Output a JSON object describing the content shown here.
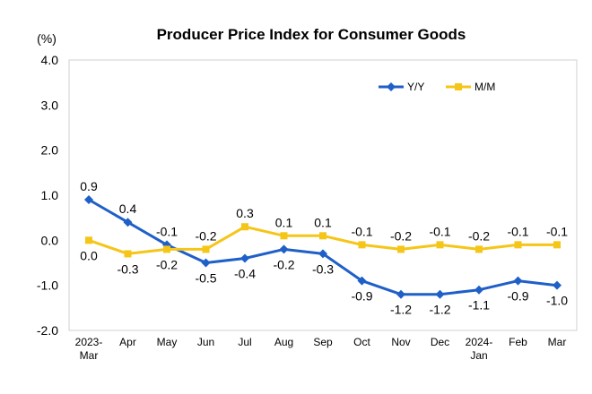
{
  "chart_data": {
    "type": "line",
    "title": "Producer Price Index for Consumer Goods",
    "unit_label": "(%)",
    "ylim": [
      -2.0,
      4.0
    ],
    "yticks": [
      "4.0",
      "3.0",
      "2.0",
      "1.0",
      "0.0",
      "-1.0",
      "-2.0"
    ],
    "ytick_values": [
      4,
      3,
      2,
      1,
      0,
      -1,
      -2
    ],
    "categories": [
      [
        "2023-",
        "Mar"
      ],
      [
        "Apr"
      ],
      [
        "May"
      ],
      [
        "Jun"
      ],
      [
        "Jul"
      ],
      [
        "Aug"
      ],
      [
        "Sep"
      ],
      [
        "Oct"
      ],
      [
        "Nov"
      ],
      [
        "Dec"
      ],
      [
        "2024-",
        "Jan"
      ],
      [
        "Feb"
      ],
      [
        "Mar"
      ]
    ],
    "grid": false,
    "legend_position": "top-right",
    "series": [
      {
        "name": "Y/Y",
        "color": "#1F5FC8",
        "marker": "diamond",
        "values": [
          0.9,
          0.4,
          -0.1,
          -0.5,
          -0.4,
          -0.2,
          -0.3,
          -0.9,
          -1.2,
          -1.2,
          -1.1,
          -0.9,
          -1.0
        ],
        "labels": [
          "0.9",
          "0.4",
          "-0.1",
          "-0.5",
          "-0.4",
          "-0.2",
          "-0.3",
          "-0.9",
          "-1.2",
          "-1.2",
          "-1.1",
          "-0.9",
          "-1.0"
        ]
      },
      {
        "name": "M/M",
        "color": "#F5C518",
        "marker": "square",
        "values": [
          0.0,
          -0.3,
          -0.2,
          -0.2,
          0.3,
          0.1,
          0.1,
          -0.1,
          -0.2,
          -0.1,
          -0.2,
          -0.1,
          -0.1
        ],
        "labels": [
          "0.0",
          "-0.3",
          "-0.2",
          "-0.2",
          "0.3",
          "0.1",
          "0.1",
          "-0.1",
          "-0.2",
          "-0.1",
          "-0.2",
          "-0.1",
          "-0.1"
        ]
      }
    ]
  }
}
